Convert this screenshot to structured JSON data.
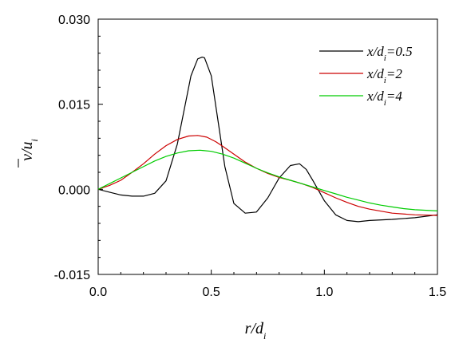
{
  "chart_data": {
    "type": "line",
    "xlabel": "r/d",
    "xlabel_sub": "i",
    "ylabel": "v/u",
    "ylabel_sub": "i",
    "xlim": [
      0,
      1.5
    ],
    "ylim": [
      -0.015,
      0.03
    ],
    "xticks": [
      {
        "value": 0.0,
        "label": "0.0"
      },
      {
        "value": 0.5,
        "label": "0.5"
      },
      {
        "value": 1.0,
        "label": "1.0"
      },
      {
        "value": 1.5,
        "label": "1.5"
      }
    ],
    "yticks": [
      {
        "value": -0.015,
        "label": "-0.015"
      },
      {
        "value": 0.0,
        "label": "0.000"
      },
      {
        "value": 0.015,
        "label": "0.015"
      },
      {
        "value": 0.03,
        "label": "0.030"
      }
    ],
    "legend_position": "top-right",
    "grid": false,
    "series": [
      {
        "name": "x/d",
        "name_sub": "i",
        "name_suffix": "=0.5",
        "color": "#000000",
        "x": [
          0.0,
          0.05,
          0.1,
          0.15,
          0.2,
          0.25,
          0.3,
          0.35,
          0.38,
          0.41,
          0.44,
          0.46,
          0.47,
          0.5,
          0.53,
          0.56,
          0.6,
          0.65,
          0.7,
          0.75,
          0.8,
          0.85,
          0.89,
          0.92,
          0.95,
          1.0,
          1.05,
          1.1,
          1.15,
          1.2,
          1.3,
          1.4,
          1.5
        ],
        "y": [
          0.0,
          -0.0005,
          -0.001,
          -0.0012,
          -0.0012,
          -0.0007,
          0.0015,
          0.008,
          0.014,
          0.02,
          0.023,
          0.0233,
          0.0232,
          0.02,
          0.012,
          0.004,
          -0.0025,
          -0.0042,
          -0.004,
          -0.0015,
          0.002,
          0.0042,
          0.0045,
          0.0035,
          0.0015,
          -0.002,
          -0.0045,
          -0.0055,
          -0.0057,
          -0.0055,
          -0.0053,
          -0.005,
          -0.0045
        ]
      },
      {
        "name": "x/d",
        "name_sub": "i",
        "name_suffix": "=2",
        "color": "#cc0000",
        "x": [
          0.0,
          0.05,
          0.1,
          0.15,
          0.2,
          0.25,
          0.3,
          0.35,
          0.4,
          0.44,
          0.48,
          0.52,
          0.55,
          0.6,
          0.65,
          0.7,
          0.75,
          0.8,
          0.85,
          0.9,
          0.95,
          1.0,
          1.05,
          1.1,
          1.15,
          1.2,
          1.3,
          1.4,
          1.5
        ],
        "y": [
          0.0,
          0.0007,
          0.0016,
          0.003,
          0.0045,
          0.0062,
          0.0077,
          0.0088,
          0.0094,
          0.0095,
          0.0092,
          0.0084,
          0.0076,
          0.0062,
          0.0048,
          0.0037,
          0.0028,
          0.0021,
          0.0016,
          0.001,
          0.0003,
          -0.0006,
          -0.0015,
          -0.0023,
          -0.003,
          -0.0035,
          -0.0042,
          -0.0045,
          -0.0046
        ]
      },
      {
        "name": "x/d",
        "name_sub": "i",
        "name_suffix": "=4",
        "color": "#00cc00",
        "x": [
          0.0,
          0.05,
          0.1,
          0.15,
          0.2,
          0.25,
          0.3,
          0.35,
          0.4,
          0.45,
          0.5,
          0.55,
          0.6,
          0.65,
          0.7,
          0.75,
          0.8,
          0.85,
          0.9,
          0.95,
          1.0,
          1.05,
          1.1,
          1.15,
          1.2,
          1.25,
          1.3,
          1.35,
          1.4,
          1.45,
          1.5
        ],
        "y": [
          0.0,
          0.001,
          0.002,
          0.003,
          0.004,
          0.005,
          0.0058,
          0.0064,
          0.0068,
          0.0069,
          0.0067,
          0.0062,
          0.0055,
          0.0046,
          0.0037,
          0.0029,
          0.0022,
          0.0016,
          0.001,
          0.0004,
          -0.0002,
          -0.0008,
          -0.0014,
          -0.0019,
          -0.0024,
          -0.0028,
          -0.0031,
          -0.0034,
          -0.0036,
          -0.0037,
          -0.0038
        ]
      }
    ]
  }
}
